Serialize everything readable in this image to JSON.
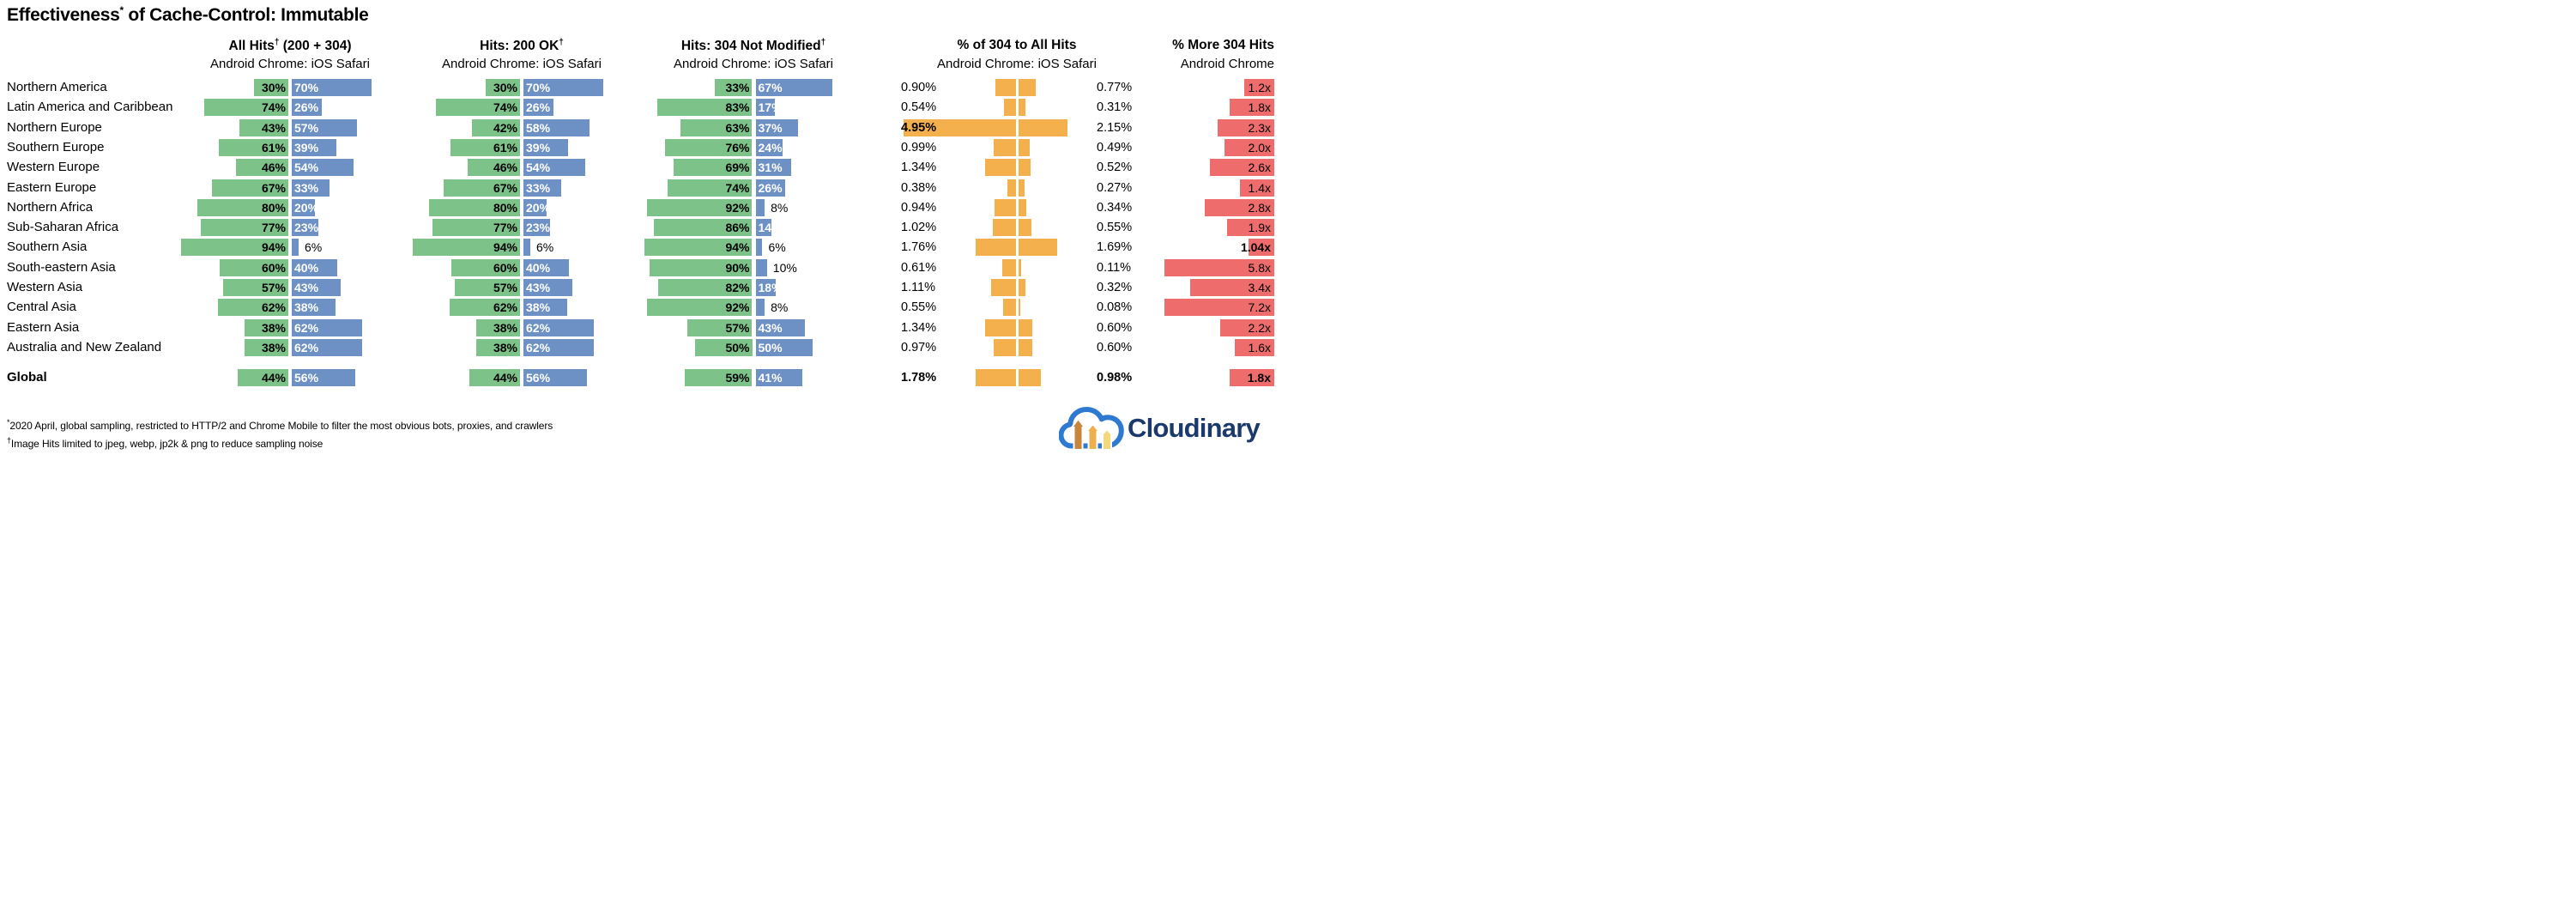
{
  "title": {
    "pre": "Effectiveness",
    "sup": "*",
    "post": " of Cache-Control: Immutable"
  },
  "columns": [
    {
      "id": "all_hits",
      "header": {
        "pre": "All Hits",
        "sup": "†",
        "post": " (200 + 304)"
      },
      "subheader": "Android Chrome: iOS Safari"
    },
    {
      "id": "hits_200",
      "header": {
        "pre": "Hits: 200 OK",
        "sup": "†",
        "post": ""
      },
      "subheader": "Android Chrome: iOS Safari"
    },
    {
      "id": "hits_304",
      "header": {
        "pre": "Hits: 304 Not Modified",
        "sup": "†",
        "post": ""
      },
      "subheader": "Android Chrome: iOS Safari"
    },
    {
      "id": "pct_304_to_all",
      "header": {
        "pre": "% of 304 to All Hits",
        "sup": "",
        "post": ""
      },
      "subheader": "Android Chrome: iOS Safari"
    },
    {
      "id": "more_304",
      "header": {
        "pre": "% More 304 Hits",
        "sup": "",
        "post": ""
      },
      "subheader": "Android Chrome"
    }
  ],
  "footnotes": [
    {
      "sup": "*",
      "text": "2020 April, global sampling, restricted to HTTP/2 and Chrome Mobile to filter the most obvious bots, proxies, and crawlers"
    },
    {
      "sup": "†",
      "text": "Image Hits limited to jpeg, webp, jp2k & png to reduce sampling noise"
    }
  ],
  "logo": {
    "text": "Cloudinary"
  },
  "colors": {
    "green": "#7dc389",
    "blue": "#6d90c5",
    "orange": "#f5b04e",
    "red": "#ef6c6d",
    "navy": "#1b3a6b",
    "cloud_blue": "#2f7ad1",
    "arrow_dark": "#c8853e",
    "arrow_mid": "#eeb04e",
    "arrow_light": "#f3d87e"
  },
  "chart_data": {
    "type": "bar",
    "subtype": "diverging horizontal bar table, Android Chrome (green, left) vs iOS Safari (blue, right); orange diverging bars for % of 304 to All Hits; red right-aligned bars for % More 304 Hits (capped at ~4.5x width)",
    "legend_position": "column subheaders",
    "rows": [
      {
        "region": "Northern America",
        "all_hits": {
          "chrome": 30,
          "safari": 70
        },
        "hits_200": {
          "chrome": 30,
          "safari": 70
        },
        "hits_304": {
          "chrome": 33,
          "safari": 67
        },
        "pct_304": {
          "chrome": 0.9,
          "chrome_label": "0.90%",
          "safari": 0.77,
          "safari_label": "0.77%",
          "chrome_bold": false,
          "safari_bold": false
        },
        "more_304": {
          "value": 1.2,
          "label": "1.2x",
          "bold": false
        }
      },
      {
        "region": "Latin America and Caribbean",
        "all_hits": {
          "chrome": 74,
          "safari": 26
        },
        "hits_200": {
          "chrome": 74,
          "safari": 26
        },
        "hits_304": {
          "chrome": 83,
          "safari": 17
        },
        "pct_304": {
          "chrome": 0.54,
          "chrome_label": "0.54%",
          "safari": 0.31,
          "safari_label": "0.31%",
          "chrome_bold": false,
          "safari_bold": false
        },
        "more_304": {
          "value": 1.8,
          "label": "1.8x",
          "bold": false
        }
      },
      {
        "region": "Northern Europe",
        "all_hits": {
          "chrome": 43,
          "safari": 57
        },
        "hits_200": {
          "chrome": 42,
          "safari": 58
        },
        "hits_304": {
          "chrome": 63,
          "safari": 37
        },
        "pct_304": {
          "chrome": 4.95,
          "chrome_label": "4.95%",
          "safari": 2.15,
          "safari_label": "2.15%",
          "chrome_bold": true,
          "safari_bold": false
        },
        "more_304": {
          "value": 2.3,
          "label": "2.3x",
          "bold": false
        }
      },
      {
        "region": "Southern Europe",
        "all_hits": {
          "chrome": 61,
          "safari": 39
        },
        "hits_200": {
          "chrome": 61,
          "safari": 39
        },
        "hits_304": {
          "chrome": 76,
          "safari": 24
        },
        "pct_304": {
          "chrome": 0.99,
          "chrome_label": "0.99%",
          "safari": 0.49,
          "safari_label": "0.49%",
          "chrome_bold": false,
          "safari_bold": false
        },
        "more_304": {
          "value": 2.0,
          "label": "2.0x",
          "bold": false
        }
      },
      {
        "region": "Western Europe",
        "all_hits": {
          "chrome": 46,
          "safari": 54
        },
        "hits_200": {
          "chrome": 46,
          "safari": 54
        },
        "hits_304": {
          "chrome": 69,
          "safari": 31
        },
        "pct_304": {
          "chrome": 1.34,
          "chrome_label": "1.34%",
          "safari": 0.52,
          "safari_label": "0.52%",
          "chrome_bold": false,
          "safari_bold": false
        },
        "more_304": {
          "value": 2.6,
          "label": "2.6x",
          "bold": false
        }
      },
      {
        "region": "Eastern Europe",
        "all_hits": {
          "chrome": 67,
          "safari": 33
        },
        "hits_200": {
          "chrome": 67,
          "safari": 33
        },
        "hits_304": {
          "chrome": 74,
          "safari": 26
        },
        "pct_304": {
          "chrome": 0.38,
          "chrome_label": "0.38%",
          "safari": 0.27,
          "safari_label": "0.27%",
          "chrome_bold": false,
          "safari_bold": false
        },
        "more_304": {
          "value": 1.4,
          "label": "1.4x",
          "bold": false
        }
      },
      {
        "region": "Northern Africa",
        "all_hits": {
          "chrome": 80,
          "safari": 20
        },
        "hits_200": {
          "chrome": 80,
          "safari": 20
        },
        "hits_304": {
          "chrome": 92,
          "safari": 8
        },
        "pct_304": {
          "chrome": 0.94,
          "chrome_label": "0.94%",
          "safari": 0.34,
          "safari_label": "0.34%",
          "chrome_bold": false,
          "safari_bold": false
        },
        "more_304": {
          "value": 2.8,
          "label": "2.8x",
          "bold": false
        }
      },
      {
        "region": "Sub-Saharan Africa",
        "all_hits": {
          "chrome": 77,
          "safari": 23
        },
        "hits_200": {
          "chrome": 77,
          "safari": 23
        },
        "hits_304": {
          "chrome": 86,
          "safari": 14
        },
        "pct_304": {
          "chrome": 1.02,
          "chrome_label": "1.02%",
          "safari": 0.55,
          "safari_label": "0.55%",
          "chrome_bold": false,
          "safari_bold": false
        },
        "more_304": {
          "value": 1.9,
          "label": "1.9x",
          "bold": false
        }
      },
      {
        "region": "Southern Asia",
        "all_hits": {
          "chrome": 94,
          "safari": 6
        },
        "hits_200": {
          "chrome": 94,
          "safari": 6
        },
        "hits_304": {
          "chrome": 94,
          "safari": 6
        },
        "pct_304": {
          "chrome": 1.76,
          "chrome_label": "1.76%",
          "safari": 1.69,
          "safari_label": "1.69%",
          "chrome_bold": false,
          "safari_bold": false
        },
        "more_304": {
          "value": 1.04,
          "label": "1.04x",
          "bold": true
        }
      },
      {
        "region": "South-eastern Asia",
        "all_hits": {
          "chrome": 60,
          "safari": 40
        },
        "hits_200": {
          "chrome": 60,
          "safari": 40
        },
        "hits_304": {
          "chrome": 90,
          "safari": 10
        },
        "pct_304": {
          "chrome": 0.61,
          "chrome_label": "0.61%",
          "safari": 0.11,
          "safari_label": "0.11%",
          "chrome_bold": false,
          "safari_bold": false
        },
        "more_304": {
          "value": 5.8,
          "label": "5.8x",
          "bold": false
        }
      },
      {
        "region": "Western Asia",
        "all_hits": {
          "chrome": 57,
          "safari": 43
        },
        "hits_200": {
          "chrome": 57,
          "safari": 43
        },
        "hits_304": {
          "chrome": 82,
          "safari": 18
        },
        "pct_304": {
          "chrome": 1.11,
          "chrome_label": "1.11%",
          "safari": 0.32,
          "safari_label": "0.32%",
          "chrome_bold": false,
          "safari_bold": false
        },
        "more_304": {
          "value": 3.4,
          "label": "3.4x",
          "bold": false
        }
      },
      {
        "region": "Central Asia",
        "all_hits": {
          "chrome": 62,
          "safari": 38
        },
        "hits_200": {
          "chrome": 62,
          "safari": 38
        },
        "hits_304": {
          "chrome": 92,
          "safari": 8
        },
        "pct_304": {
          "chrome": 0.55,
          "chrome_label": "0.55%",
          "safari": 0.08,
          "safari_label": "0.08%",
          "chrome_bold": false,
          "safari_bold": false
        },
        "more_304": {
          "value": 7.2,
          "label": "7.2x",
          "bold": false
        }
      },
      {
        "region": "Eastern Asia",
        "all_hits": {
          "chrome": 38,
          "safari": 62
        },
        "hits_200": {
          "chrome": 38,
          "safari": 62
        },
        "hits_304": {
          "chrome": 57,
          "safari": 43
        },
        "pct_304": {
          "chrome": 1.34,
          "chrome_label": "1.34%",
          "safari": 0.6,
          "safari_label": "0.60%",
          "chrome_bold": false,
          "safari_bold": false
        },
        "more_304": {
          "value": 2.2,
          "label": "2.2x",
          "bold": false
        }
      },
      {
        "region": "Australia and New Zealand",
        "all_hits": {
          "chrome": 38,
          "safari": 62
        },
        "hits_200": {
          "chrome": 38,
          "safari": 62
        },
        "hits_304": {
          "chrome": 50,
          "safari": 50
        },
        "pct_304": {
          "chrome": 0.97,
          "chrome_label": "0.97%",
          "safari": 0.6,
          "safari_label": "0.60%",
          "chrome_bold": false,
          "safari_bold": false
        },
        "more_304": {
          "value": 1.6,
          "label": "1.6x",
          "bold": false
        }
      }
    ],
    "global": {
      "region": "Global",
      "all_hits": {
        "chrome": 44,
        "safari": 56
      },
      "hits_200": {
        "chrome": 44,
        "safari": 56
      },
      "hits_304": {
        "chrome": 59,
        "safari": 41
      },
      "pct_304": {
        "chrome": 1.78,
        "chrome_label": "1.78%",
        "safari": 0.98,
        "safari_label": "0.98%",
        "chrome_bold": true,
        "safari_bold": true
      },
      "more_304": {
        "value": 1.8,
        "label": "1.8x",
        "bold": true
      }
    }
  }
}
